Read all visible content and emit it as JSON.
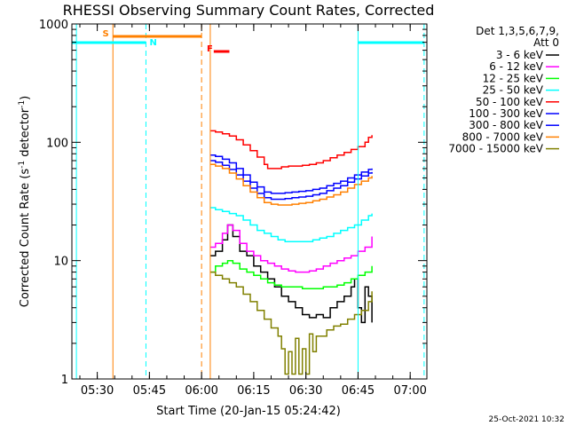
{
  "chart_data": {
    "type": "line",
    "title": "RHESSI Observing Summary Count Rates, Corrected",
    "xlabel": "Start Time (20-Jan-15 05:24:42)",
    "ylabel_main": "Corrected Count Rate (s",
    "ylabel_sup1": "-1",
    "ylabel_mid": " detector",
    "ylabel_sup2": "-1",
    "ylabel_end": ")",
    "y_scale": "log",
    "ylim": [
      1,
      1000
    ],
    "xlim_minutes": [
      -1.3,
      100.8
    ],
    "x_ticks": [
      {
        "m": 6,
        "label": "05:30"
      },
      {
        "m": 21,
        "label": "05:45"
      },
      {
        "m": 36,
        "label": "06:00"
      },
      {
        "m": 51,
        "label": "06:15"
      },
      {
        "m": 66,
        "label": "06:30"
      },
      {
        "m": 81,
        "label": "06:45"
      },
      {
        "m": 96,
        "label": "07:00"
      }
    ],
    "y_ticks": [
      {
        "v": 1,
        "label": "1"
      },
      {
        "v": 10,
        "label": "10"
      },
      {
        "v": 100,
        "label": "100"
      },
      {
        "v": 1000,
        "label": "1000"
      }
    ],
    "legend_header": [
      "Det 1,3,5,6,7,9,",
      "Att 0"
    ],
    "legend_placement": "right",
    "series": [
      {
        "name": "3 - 6 keV",
        "color": "#000000",
        "points": [
          [
            38.5,
            11
          ],
          [
            40,
            12
          ],
          [
            42,
            15
          ],
          [
            43.5,
            20
          ],
          [
            45,
            16
          ],
          [
            47,
            12
          ],
          [
            49,
            11
          ],
          [
            51,
            9
          ],
          [
            53,
            8
          ],
          [
            55,
            7
          ],
          [
            57,
            6
          ],
          [
            59,
            5
          ],
          [
            61,
            4.5
          ],
          [
            63,
            4
          ],
          [
            65,
            3.5
          ],
          [
            67,
            3.3
          ],
          [
            69,
            3.5
          ],
          [
            71,
            3.3
          ],
          [
            73,
            4
          ],
          [
            75,
            4.5
          ],
          [
            77,
            5
          ],
          [
            79,
            6
          ],
          [
            80,
            7
          ],
          [
            81,
            4
          ],
          [
            82,
            3
          ],
          [
            83,
            6
          ],
          [
            84,
            5
          ],
          [
            85,
            3
          ]
        ]
      },
      {
        "name": "6 - 12 keV",
        "color": "#ff00ff",
        "points": [
          [
            38.5,
            13
          ],
          [
            40,
            14
          ],
          [
            42,
            17
          ],
          [
            43.5,
            20
          ],
          [
            45,
            18
          ],
          [
            47,
            14
          ],
          [
            49,
            12
          ],
          [
            51,
            11
          ],
          [
            53,
            10
          ],
          [
            55,
            9.5
          ],
          [
            57,
            9
          ],
          [
            59,
            8.5
          ],
          [
            61,
            8.2
          ],
          [
            63,
            8
          ],
          [
            65,
            8
          ],
          [
            67,
            8.2
          ],
          [
            69,
            8.5
          ],
          [
            71,
            9
          ],
          [
            73,
            9.5
          ],
          [
            75,
            10
          ],
          [
            77,
            10.5
          ],
          [
            79,
            11
          ],
          [
            81,
            12
          ],
          [
            83,
            13
          ],
          [
            85,
            16
          ]
        ]
      },
      {
        "name": "12 - 25 keV",
        "color": "#00ff00",
        "points": [
          [
            38.5,
            8
          ],
          [
            40,
            9
          ],
          [
            42,
            9.5
          ],
          [
            43.5,
            10
          ],
          [
            45,
            9.5
          ],
          [
            47,
            8.5
          ],
          [
            49,
            8
          ],
          [
            51,
            7.5
          ],
          [
            53,
            7
          ],
          [
            55,
            6.5
          ],
          [
            57,
            6.2
          ],
          [
            59,
            6
          ],
          [
            61,
            6
          ],
          [
            63,
            6
          ],
          [
            65,
            5.8
          ],
          [
            67,
            5.8
          ],
          [
            69,
            5.8
          ],
          [
            71,
            6
          ],
          [
            73,
            6
          ],
          [
            75,
            6.2
          ],
          [
            77,
            6.5
          ],
          [
            79,
            7
          ],
          [
            81,
            7.5
          ],
          [
            83,
            8
          ],
          [
            85,
            9
          ]
        ]
      },
      {
        "name": "25 - 50 keV",
        "color": "#00ffff",
        "points": [
          [
            38.5,
            28
          ],
          [
            40,
            27
          ],
          [
            42,
            26
          ],
          [
            44,
            25
          ],
          [
            46,
            24
          ],
          [
            48,
            22
          ],
          [
            50,
            20
          ],
          [
            52,
            18
          ],
          [
            54,
            17
          ],
          [
            56,
            16
          ],
          [
            58,
            15
          ],
          [
            60,
            14.5
          ],
          [
            62,
            14.5
          ],
          [
            64,
            14.5
          ],
          [
            66,
            14.5
          ],
          [
            68,
            15
          ],
          [
            70,
            15.5
          ],
          [
            72,
            16
          ],
          [
            74,
            17
          ],
          [
            76,
            18
          ],
          [
            78,
            19
          ],
          [
            80,
            20
          ],
          [
            82,
            22
          ],
          [
            84,
            24
          ],
          [
            85,
            25
          ]
        ]
      },
      {
        "name": "50 - 100 keV",
        "color": "#ff0000",
        "points": [
          [
            38.5,
            125
          ],
          [
            40,
            122
          ],
          [
            42,
            118
          ],
          [
            44,
            113
          ],
          [
            46,
            105
          ],
          [
            48,
            95
          ],
          [
            50,
            85
          ],
          [
            52,
            75
          ],
          [
            54,
            65
          ],
          [
            55,
            60
          ],
          [
            57,
            60
          ],
          [
            59,
            62
          ],
          [
            61,
            63
          ],
          [
            63,
            63
          ],
          [
            65,
            64
          ],
          [
            67,
            65
          ],
          [
            69,
            67
          ],
          [
            71,
            70
          ],
          [
            73,
            74
          ],
          [
            75,
            78
          ],
          [
            77,
            82
          ],
          [
            79,
            87
          ],
          [
            81,
            92
          ],
          [
            83,
            100
          ],
          [
            84,
            110
          ],
          [
            85,
            115
          ]
        ]
      },
      {
        "name": "100 - 300 keV",
        "color": "#0000ff",
        "points": [
          [
            38.5,
            78
          ],
          [
            40,
            76
          ],
          [
            42,
            72
          ],
          [
            44,
            67
          ],
          [
            46,
            60
          ],
          [
            48,
            53
          ],
          [
            50,
            46
          ],
          [
            52,
            42
          ],
          [
            54,
            38
          ],
          [
            56,
            37
          ],
          [
            58,
            37
          ],
          [
            60,
            37.5
          ],
          [
            62,
            38
          ],
          [
            64,
            38.5
          ],
          [
            66,
            39
          ],
          [
            68,
            40
          ],
          [
            70,
            41
          ],
          [
            72,
            43
          ],
          [
            74,
            45
          ],
          [
            76,
            47
          ],
          [
            78,
            50
          ],
          [
            80,
            53
          ],
          [
            82,
            56
          ],
          [
            84,
            59
          ],
          [
            85,
            60
          ]
        ]
      },
      {
        "name": "300 - 800 keV",
        "color": "#0000ff",
        "points": [
          [
            38.5,
            70
          ],
          [
            40,
            68
          ],
          [
            42,
            64
          ],
          [
            44,
            59
          ],
          [
            46,
            53
          ],
          [
            48,
            47
          ],
          [
            50,
            41
          ],
          [
            52,
            37
          ],
          [
            54,
            34
          ],
          [
            56,
            33
          ],
          [
            58,
            33
          ],
          [
            60,
            33.5
          ],
          [
            62,
            34
          ],
          [
            64,
            34.5
          ],
          [
            66,
            35
          ],
          [
            68,
            36
          ],
          [
            70,
            37
          ],
          [
            72,
            39
          ],
          [
            74,
            41
          ],
          [
            76,
            43
          ],
          [
            78,
            46
          ],
          [
            80,
            49
          ],
          [
            82,
            52
          ],
          [
            84,
            55
          ],
          [
            85,
            56
          ]
        ]
      },
      {
        "name": "800 - 7000 keV",
        "color": "#ff8000",
        "points": [
          [
            38.5,
            65
          ],
          [
            40,
            63
          ],
          [
            42,
            60
          ],
          [
            44,
            55
          ],
          [
            46,
            49
          ],
          [
            48,
            43
          ],
          [
            50,
            38
          ],
          [
            52,
            34
          ],
          [
            54,
            31
          ],
          [
            56,
            30
          ],
          [
            58,
            29.5
          ],
          [
            60,
            29.5
          ],
          [
            62,
            30
          ],
          [
            64,
            30.5
          ],
          [
            66,
            31
          ],
          [
            68,
            32
          ],
          [
            70,
            33
          ],
          [
            72,
            34.5
          ],
          [
            74,
            36
          ],
          [
            76,
            38
          ],
          [
            78,
            41
          ],
          [
            80,
            44
          ],
          [
            82,
            47
          ],
          [
            84,
            50
          ],
          [
            85,
            52
          ]
        ]
      },
      {
        "name": "7000 - 15000 keV",
        "color": "#808000",
        "points": [
          [
            38.5,
            8
          ],
          [
            40,
            7.5
          ],
          [
            42,
            7
          ],
          [
            44,
            6.5
          ],
          [
            46,
            6
          ],
          [
            48,
            5.2
          ],
          [
            50,
            4.5
          ],
          [
            52,
            3.8
          ],
          [
            54,
            3.2
          ],
          [
            56,
            2.7
          ],
          [
            58,
            2.3
          ],
          [
            59,
            1.8
          ],
          [
            60,
            1.1
          ],
          [
            61,
            1.7
          ],
          [
            62,
            1.1
          ],
          [
            63,
            2.2
          ],
          [
            64,
            1.1
          ],
          [
            65,
            1.8
          ],
          [
            66,
            1.1
          ],
          [
            67,
            2.4
          ],
          [
            68,
            1.7
          ],
          [
            69,
            2.3
          ],
          [
            70,
            2.3
          ],
          [
            72,
            2.6
          ],
          [
            74,
            2.8
          ],
          [
            76,
            2.9
          ],
          [
            78,
            3.2
          ],
          [
            80,
            3.5
          ],
          [
            82,
            3.8
          ],
          [
            84,
            4.5
          ],
          [
            85,
            5.5
          ]
        ]
      }
    ],
    "lines": [
      {
        "id": "ecl-start-1",
        "x_minutes": 0,
        "color": "#00ffff",
        "style": "solid"
      },
      {
        "id": "ecl-end-1",
        "x_minutes": 20,
        "color": "#00ffff",
        "style": "dash"
      },
      {
        "id": "ecl-start-2",
        "x_minutes": 81,
        "color": "#00ffff",
        "style": "solid"
      },
      {
        "id": "ecl-end-2",
        "x_minutes": 100,
        "color": "#00ffff",
        "style": "dash"
      },
      {
        "id": "saa-start",
        "x_minutes": 10.5,
        "color": "#ff8000",
        "style": "solid"
      },
      {
        "id": "saa-end",
        "x_minutes": 36,
        "color": "#ff8000",
        "style": "dash"
      },
      {
        "id": "data-start",
        "x_minutes": 38.5,
        "color": "#ff8000",
        "style": "solid"
      }
    ],
    "bars": [
      {
        "id": "night-1",
        "x0": -1.3,
        "x1": 20,
        "color": "#00ffff",
        "label": "N",
        "label_x": 20
      },
      {
        "id": "night-2",
        "x0": 81,
        "x1": 100,
        "color": "#00ffff",
        "label": "",
        "label_x": 81
      },
      {
        "id": "saa",
        "x0": 10.5,
        "x1": 36,
        "color": "#ff8000",
        "label": "S",
        "label_x": 7.5
      },
      {
        "id": "flare",
        "x0": 39.5,
        "x1": 44,
        "color": "#ff0000",
        "label": "F",
        "label_x": 37.5
      }
    ],
    "timestamp": "25-Oct-2021 10:32"
  }
}
